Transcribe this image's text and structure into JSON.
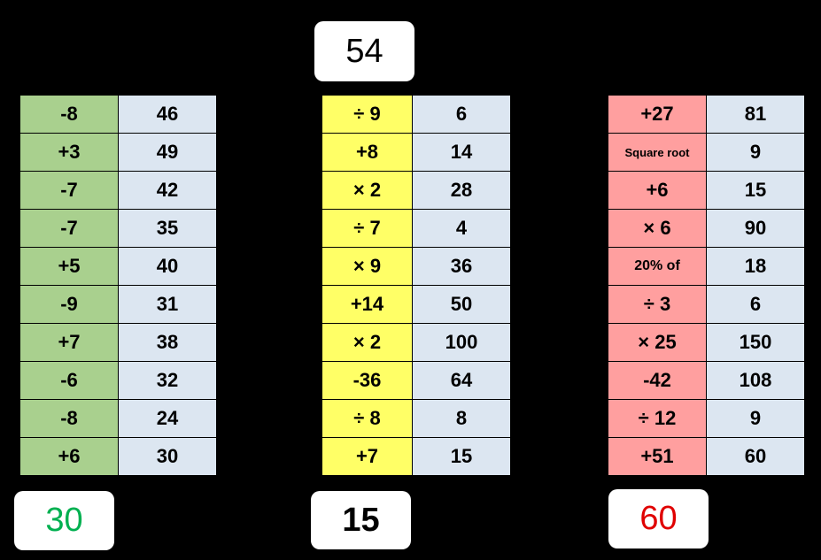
{
  "start": "54",
  "columns": [
    {
      "rows": [
        [
          "-8",
          "46"
        ],
        [
          "+3",
          "49"
        ],
        [
          "-7",
          "42"
        ],
        [
          "-7",
          "35"
        ],
        [
          "+5",
          "40"
        ],
        [
          "-9",
          "31"
        ],
        [
          "+7",
          "38"
        ],
        [
          "-6",
          "32"
        ],
        [
          "-8",
          "24"
        ],
        [
          "+6",
          "30"
        ]
      ]
    },
    {
      "rows": [
        [
          "÷ 9",
          "6"
        ],
        [
          "+8",
          "14"
        ],
        [
          "× 2",
          "28"
        ],
        [
          "÷ 7",
          "4"
        ],
        [
          "× 9",
          "36"
        ],
        [
          "+14",
          "50"
        ],
        [
          "× 2",
          "100"
        ],
        [
          "-36",
          "64"
        ],
        [
          "÷ 8",
          "8"
        ],
        [
          "+7",
          "15"
        ]
      ]
    },
    {
      "rows": [
        [
          "+27",
          "81"
        ],
        [
          "Square root",
          "9"
        ],
        [
          "+6",
          "15"
        ],
        [
          "× 6",
          "90"
        ],
        [
          "20% of",
          "18"
        ],
        [
          "÷ 3",
          "6"
        ],
        [
          "× 25",
          "150"
        ],
        [
          "-42",
          "108"
        ],
        [
          "÷ 12",
          "9"
        ],
        [
          "+51",
          "60"
        ]
      ]
    }
  ],
  "answers": [
    "30",
    "15",
    "60"
  ]
}
